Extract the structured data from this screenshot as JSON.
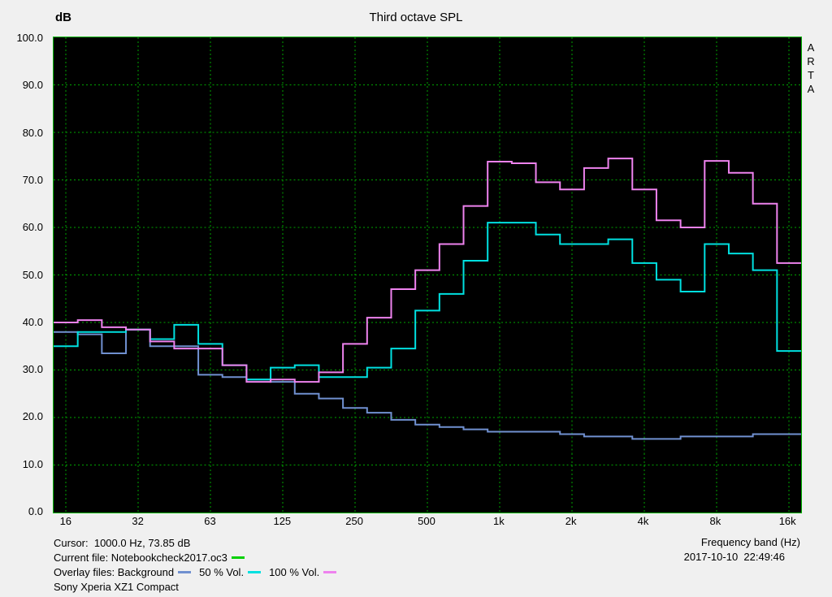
{
  "header": {
    "y_unit": "dB",
    "title": "Third octave SPL"
  },
  "watermark": [
    "A",
    "R",
    "T",
    "A"
  ],
  "footer": {
    "cursor": "Cursor:  1000.0 Hz, 73.85 dB",
    "current_file": "Current file: Notebookcheck2017.oc3",
    "overlay_files": "Overlay files: Background",
    "overlay_50": "50 % Vol.",
    "overlay_100": "100 % Vol.",
    "device": "Sony Xperia XZ1 Compact",
    "x_axis_title": "Frequency band (Hz)",
    "timestamp": "2017-10-10  22:49:46"
  },
  "colors": {
    "window_bg": "#f0f0f0",
    "plot_bg": "#000000",
    "grid": "#00a400",
    "plot_border": "#00b400",
    "text": "#000000",
    "current_file_marker": "#00d000"
  },
  "chart_data": {
    "type": "line",
    "variant": "third-octave-step",
    "title": "Third octave SPL",
    "xlabel": "Frequency band (Hz)",
    "ylabel": "dB",
    "ylim": [
      0,
      100
    ],
    "y_ticks": [
      0,
      10,
      20,
      30,
      40,
      50,
      60,
      70,
      80,
      90,
      100
    ],
    "x_tick_labels": [
      "16",
      "32",
      "63",
      "125",
      "250",
      "500",
      "1k",
      "2k",
      "4k",
      "8k",
      "16k"
    ],
    "x_tick_band_index": [
      0,
      3,
      6,
      9,
      12,
      15,
      18,
      21,
      24,
      27,
      30
    ],
    "bands_hz": [
      16,
      20,
      25,
      31.5,
      40,
      50,
      63,
      80,
      100,
      125,
      160,
      200,
      250,
      315,
      400,
      500,
      630,
      800,
      1000,
      1250,
      1600,
      2000,
      2500,
      3150,
      4000,
      5000,
      6300,
      8000,
      10000,
      12500,
      16000
    ],
    "grid": true,
    "legend_position": "bottom",
    "cursor": {
      "frequency_hz": 1000.0,
      "value_db": 73.85
    },
    "series": [
      {
        "name": "Background",
        "color": "#7090d0",
        "values": [
          38,
          37.5,
          33.5,
          38.5,
          35,
          35,
          29,
          28.5,
          28,
          27.5,
          25,
          24,
          22,
          21,
          19.5,
          18.5,
          18,
          17.5,
          17,
          17,
          17,
          16.5,
          16,
          16,
          15.5,
          15.5,
          16,
          16,
          16,
          16.5,
          16.5
        ]
      },
      {
        "name": "50 % Vol.",
        "color": "#00e0e0",
        "values": [
          35,
          38,
          38,
          38.5,
          36.5,
          39.5,
          35.5,
          31,
          28,
          30.5,
          31,
          28.5,
          28.5,
          30.5,
          34.5,
          42.5,
          46,
          53,
          61,
          61,
          58.5,
          56.5,
          56.5,
          57.5,
          52.5,
          49,
          46.5,
          56.5,
          54.5,
          51,
          34
        ]
      },
      {
        "name": "100 % Vol.",
        "color": "#ee82ee",
        "values": [
          40,
          40.5,
          39,
          38.5,
          36,
          34.5,
          34.5,
          31,
          27.5,
          28,
          27.5,
          29.5,
          35.5,
          41,
          47,
          51,
          56.5,
          64.5,
          73.85,
          73.5,
          69.5,
          68,
          72.5,
          74.5,
          68,
          61.5,
          60,
          74,
          71.5,
          65,
          52.5
        ]
      }
    ]
  }
}
